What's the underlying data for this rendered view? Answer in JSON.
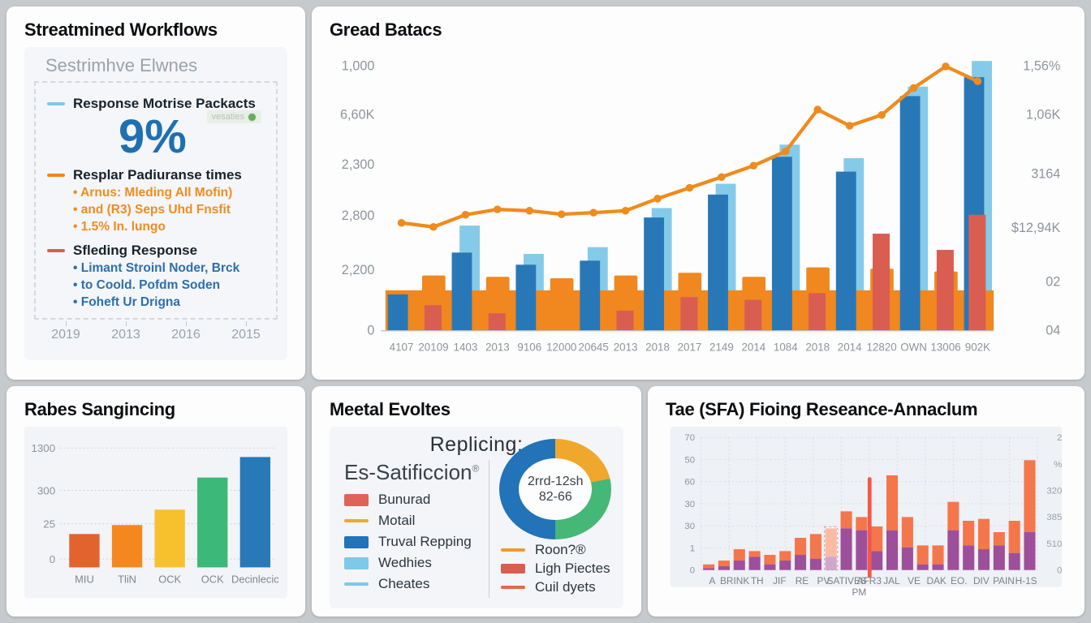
{
  "workflows": {
    "title": "Streatmined Workflows",
    "subtitle": "Sestrimhve Elwnes",
    "badge": "vesaties",
    "big_value": "9%",
    "sections": [
      {
        "marker_color": "#7ec8e8",
        "title": "Response Motrise Packacts",
        "item_color": "#f08c1e",
        "items": []
      },
      {
        "marker_color": "#f0881f",
        "title": "Resplar Padiuranse times",
        "item_color": "#f08c1e",
        "items": [
          "Arnus: Mleding All Mofin)",
          "and (R3) Seps Uhd Fnsfit",
          "1.5% In. lungo"
        ]
      },
      {
        "marker_color": "#da5d52",
        "title": "Sfleding Response",
        "item_color": "#2d6fad",
        "items": [
          "Limant Stroinl Noder, Brck",
          "to Coold. Pofdm Soden",
          "Foheft Ur Drigna"
        ]
      }
    ],
    "x_labels": [
      "2019",
      "2013",
      "2016",
      "2015"
    ]
  },
  "meetal": {
    "heading": "Replicing:",
    "left_title": "Es-Satificcion",
    "left_title_sup": "®",
    "left_legend": [
      {
        "label": "Bunurad",
        "swatch": "rect",
        "color": "#e0635a"
      },
      {
        "label": "Motail",
        "swatch": "line",
        "color": "#f0a82c"
      },
      {
        "label": "Truval Repping",
        "swatch": "rect",
        "color": "#2273b8"
      },
      {
        "label": "Wedhies",
        "swatch": "rect",
        "color": "#7ec8e8"
      },
      {
        "label": "Cheates",
        "swatch": "line",
        "color": "#7ec8e8"
      }
    ],
    "right_legend": [
      {
        "label": "Roon?®",
        "swatch": "line",
        "color": "#f09a28"
      },
      {
        "label": "Ligh Piectes",
        "swatch": "rect",
        "color": "#da5d52"
      },
      {
        "label": "Cuil dyets",
        "swatch": "line",
        "color": "#e0694f"
      }
    ]
  },
  "chart_data": [
    {
      "id": "gread",
      "type": "bar",
      "combo": true,
      "title": "Gread Batacs",
      "categories": [
        "4107",
        "20109",
        "1403",
        "2013",
        "9106",
        "12000",
        "20645",
        "2013",
        "2018",
        "2017",
        "2149",
        "2014",
        "1084",
        "2018",
        "2014",
        "12820",
        "OWN",
        "13006",
        "902K"
      ],
      "series": [
        {
          "name": "light-blue-bars",
          "color": "#85cbe9",
          "values": [
            150,
            0,
            390,
            0,
            285,
            0,
            310,
            0,
            455,
            0,
            545,
            0,
            690,
            0,
            640,
            0,
            905,
            0,
            1000
          ]
        },
        {
          "name": "blue-bars",
          "color": "#2878b8",
          "values": [
            135,
            0,
            290,
            0,
            245,
            0,
            260,
            0,
            420,
            0,
            505,
            0,
            645,
            0,
            590,
            0,
            870,
            0,
            940
          ]
        },
        {
          "name": "orange-bars",
          "color": "#f0881f",
          "values": [
            0,
            205,
            0,
            200,
            0,
            195,
            0,
            205,
            0,
            215,
            0,
            200,
            0,
            235,
            0,
            230,
            0,
            220,
            0
          ]
        },
        {
          "name": "red-bars",
          "color": "#da5d52",
          "values": [
            0,
            95,
            0,
            65,
            0,
            0,
            0,
            75,
            0,
            125,
            0,
            115,
            0,
            140,
            0,
            360,
            0,
            300,
            430
          ]
        },
        {
          "name": "trend-line",
          "type": "line",
          "color": "#ef8b1d",
          "values": [
            400,
            385,
            430,
            450,
            445,
            432,
            438,
            445,
            490,
            530,
            570,
            612,
            665,
            820,
            760,
            800,
            900,
            980,
            925
          ]
        }
      ],
      "band_value": 150,
      "ylim": [
        0,
        1000
      ],
      "y_left_ticks": [
        "1,000",
        "6,60K",
        "2,300",
        "2,800",
        "2,200",
        "0"
      ],
      "y_right_ticks": [
        "1,56%",
        "1,06K",
        "3164",
        "$12,94K",
        "02",
        "04"
      ]
    },
    {
      "id": "rabes",
      "type": "bar",
      "title": "Rabes Sangincing",
      "categories": [
        "MIU",
        "TliN",
        "OCK",
        "OCK",
        "Decinlecic"
      ],
      "values": [
        26,
        33,
        45,
        70,
        86
      ],
      "colors": [
        "#e2632e",
        "#f4881f",
        "#f7c02d",
        "#3cb878",
        "#2779b7"
      ],
      "y_ticks": [
        "1300",
        "300",
        "25",
        "0"
      ],
      "ylim": [
        0,
        100
      ]
    },
    {
      "id": "meetal-donut",
      "type": "pie",
      "title": "Meetal Evoltes",
      "slices": [
        {
          "label": "orange",
          "value": 22,
          "color": "#f0a82c"
        },
        {
          "label": "green",
          "value": 28,
          "color": "#45b877"
        },
        {
          "label": "blue",
          "value": 50,
          "color": "#2273b8"
        }
      ],
      "center_text_line1": "2rrd-12sh",
      "center_text_line2": "82-66"
    },
    {
      "id": "sfa",
      "type": "bar",
      "stacked": true,
      "title": "Tae (SFA) Fioing Reseance-Annaclum",
      "x_labels": [
        "A",
        "BRINK",
        "TH",
        "JIF",
        "RE",
        "PV.",
        "SATIVES",
        "AFR3",
        "JAL",
        "VE",
        "DAK",
        "EO.",
        "DIV",
        "PAIN",
        "H-1S"
      ],
      "x_sub_label": "PM",
      "series": [
        {
          "name": "purple",
          "color": "#9e4f9b",
          "values": [
            1,
            2,
            5,
            7,
            3,
            5,
            8,
            6,
            7,
            22,
            21,
            10,
            21,
            12,
            3,
            3,
            21,
            13,
            11,
            13,
            9,
            20
          ]
        },
        {
          "name": "orange",
          "color": "#f4764b",
          "values": [
            2,
            3,
            6,
            3,
            5,
            5,
            9,
            13,
            15,
            9,
            7,
            13,
            29,
            16,
            10,
            10,
            15,
            13,
            16,
            7,
            17,
            38
          ]
        }
      ],
      "totals": [
        3,
        5,
        11,
        10,
        8,
        10,
        17,
        19,
        22,
        31,
        28,
        23,
        50,
        28,
        13,
        13,
        36,
        26,
        27,
        20,
        26,
        58
      ],
      "spike": {
        "after_index": 11,
        "value": 49,
        "color": "#f4574a"
      },
      "striped_index": 8,
      "ylim": [
        0,
        70
      ],
      "y_left_ticks": [
        "70",
        "50",
        "60",
        "30",
        "30",
        "1",
        "0"
      ],
      "y_right_ticks": [
        "2",
        "%",
        "320",
        "385",
        "510",
        "0"
      ]
    }
  ],
  "colors": {
    "accent_blue": "#2878b8",
    "accent_light_blue": "#85cbe9",
    "accent_orange": "#f0881f",
    "accent_red": "#da5d52",
    "axis_text": "#8e949c"
  }
}
